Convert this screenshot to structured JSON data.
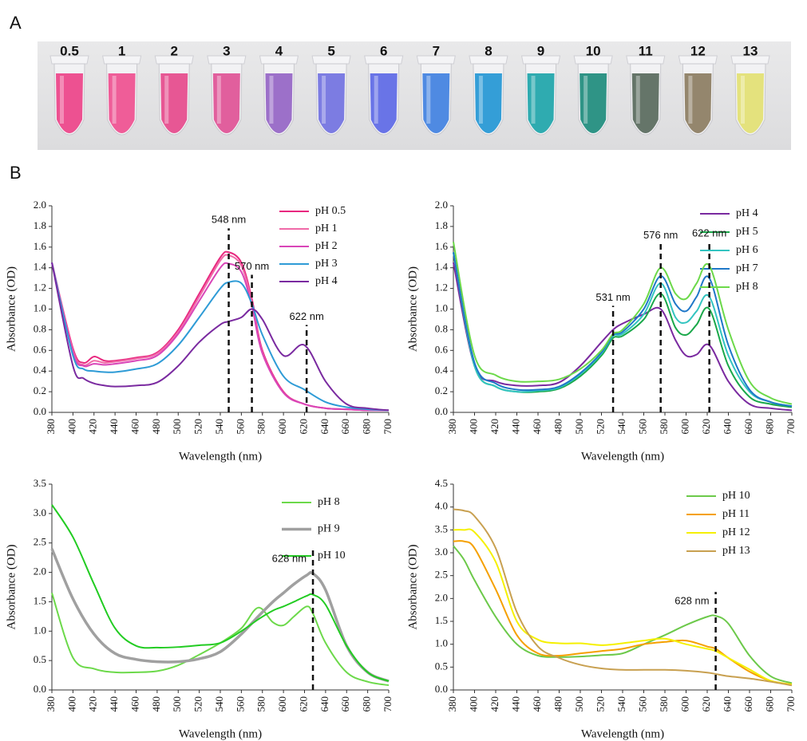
{
  "panel_labels": [
    "A",
    "B"
  ],
  "tubes": {
    "labels": [
      "0.5",
      "1",
      "2",
      "3",
      "4",
      "5",
      "6",
      "7",
      "8",
      "9",
      "10",
      "11",
      "12",
      "13"
    ],
    "colors": [
      "#ec3f86",
      "#ee4d8e",
      "#e6468a",
      "#df4f93",
      "#9262c4",
      "#6f6fe0",
      "#5a66e6",
      "#3d7ee0",
      "#1f95d4",
      "#1aa3a8",
      "#1a8a7a",
      "#55675a",
      "#8a7a5e",
      "#e2e070"
    ]
  },
  "chart_data": [
    {
      "type": "line",
      "x_label": "Wavelength (nm)",
      "y_label": "Absorbance (OD)",
      "xlim": [
        380,
        700
      ],
      "xticks": [
        380,
        400,
        420,
        440,
        460,
        480,
        500,
        520,
        540,
        560,
        580,
        600,
        620,
        640,
        660,
        680,
        700
      ],
      "ylim": [
        0,
        2
      ],
      "yticks": [
        {
          "value": 0,
          "label": "0.0"
        },
        0.2,
        0.4,
        0.6,
        0.8,
        {
          "value": 1,
          "label": "1.0"
        },
        1.2,
        1.4,
        1.6,
        1.8,
        {
          "value": 2,
          "label": "2.0"
        }
      ],
      "legend": "upper right",
      "x": [
        380,
        400,
        410,
        420,
        430,
        440,
        460,
        480,
        500,
        520,
        540,
        548,
        560,
        570,
        580,
        600,
        620,
        640,
        660,
        680,
        700
      ],
      "series": [
        {
          "name": "pH 0.5",
          "color": "#e8287f",
          "values": [
            1.45,
            0.62,
            0.48,
            0.54,
            0.5,
            0.5,
            0.53,
            0.58,
            0.8,
            1.15,
            1.5,
            1.55,
            1.45,
            1.1,
            0.6,
            0.2,
            0.08,
            0.04,
            0.03,
            0.02,
            0.02
          ]
        },
        {
          "name": "pH 1",
          "color": "#f06aa8",
          "values": [
            1.45,
            0.6,
            0.46,
            0.5,
            0.48,
            0.49,
            0.52,
            0.57,
            0.78,
            1.12,
            1.47,
            1.52,
            1.42,
            1.07,
            0.58,
            0.19,
            0.08,
            0.04,
            0.03,
            0.02,
            0.02
          ]
        },
        {
          "name": "pH 2",
          "color": "#d945b8",
          "values": [
            1.45,
            0.58,
            0.45,
            0.47,
            0.46,
            0.47,
            0.5,
            0.55,
            0.76,
            1.08,
            1.4,
            1.44,
            1.36,
            1.03,
            0.57,
            0.19,
            0.08,
            0.04,
            0.03,
            0.02,
            0.02
          ]
        },
        {
          "name": "pH 3",
          "color": "#2e9bd6",
          "values": [
            1.45,
            0.55,
            0.42,
            0.4,
            0.39,
            0.39,
            0.42,
            0.47,
            0.65,
            0.92,
            1.2,
            1.26,
            1.25,
            1.05,
            0.75,
            0.35,
            0.22,
            0.1,
            0.05,
            0.03,
            0.02
          ]
        },
        {
          "name": "pH 4",
          "color": "#7a2aa0",
          "values": [
            1.45,
            0.45,
            0.33,
            0.28,
            0.26,
            0.25,
            0.26,
            0.29,
            0.45,
            0.68,
            0.85,
            0.88,
            0.92,
            1.0,
            0.9,
            0.55,
            0.65,
            0.3,
            0.08,
            0.04,
            0.02
          ]
        }
      ],
      "annotations": [
        {
          "text": "548 nm",
          "x": 548
        },
        {
          "text": "570 nm",
          "x": 570
        },
        {
          "text": "622 nm",
          "x": 622
        }
      ]
    },
    {
      "type": "line",
      "x_label": "Wavelength (nm)",
      "y_label": "Absorbance (OD)",
      "xlim": [
        380,
        700
      ],
      "xticks": [
        380,
        400,
        420,
        440,
        460,
        480,
        500,
        520,
        540,
        560,
        580,
        600,
        620,
        640,
        660,
        680,
        700
      ],
      "ylim": [
        0,
        2
      ],
      "yticks": [
        {
          "value": 0,
          "label": "0.0"
        },
        0.2,
        0.4,
        0.6,
        0.8,
        {
          "value": 1,
          "label": "1.0"
        },
        1.2,
        1.4,
        1.6,
        1.8,
        {
          "value": 2,
          "label": "2.0"
        }
      ],
      "legend": "upper right",
      "x": [
        380,
        400,
        420,
        440,
        460,
        480,
        500,
        520,
        531,
        540,
        560,
        576,
        590,
        600,
        610,
        622,
        640,
        660,
        680,
        700
      ],
      "series": [
        {
          "name": "pH 4",
          "color": "#7a2aa0",
          "values": [
            1.45,
            0.45,
            0.3,
            0.26,
            0.26,
            0.29,
            0.45,
            0.68,
            0.8,
            0.86,
            0.95,
            1.0,
            0.7,
            0.55,
            0.56,
            0.65,
            0.3,
            0.08,
            0.04,
            0.02
          ]
        },
        {
          "name": "pH 5",
          "color": "#1aa84a",
          "values": [
            1.55,
            0.45,
            0.25,
            0.2,
            0.2,
            0.23,
            0.35,
            0.55,
            0.72,
            0.74,
            0.9,
            1.15,
            0.82,
            0.75,
            0.85,
            1.0,
            0.45,
            0.15,
            0.08,
            0.05
          ]
        },
        {
          "name": "pH 6",
          "color": "#33c4c0",
          "values": [
            1.55,
            0.45,
            0.25,
            0.2,
            0.21,
            0.24,
            0.37,
            0.57,
            0.74,
            0.76,
            0.95,
            1.25,
            0.92,
            0.87,
            0.98,
            1.12,
            0.55,
            0.2,
            0.1,
            0.06
          ]
        },
        {
          "name": "pH 7",
          "color": "#1f78c8",
          "values": [
            1.55,
            0.48,
            0.28,
            0.22,
            0.22,
            0.25,
            0.38,
            0.58,
            0.75,
            0.78,
            1.0,
            1.32,
            1.05,
            0.98,
            1.12,
            1.3,
            0.65,
            0.22,
            0.1,
            0.06
          ]
        },
        {
          "name": "pH 8",
          "color": "#6cd94a",
          "values": [
            1.65,
            0.55,
            0.36,
            0.3,
            0.3,
            0.32,
            0.42,
            0.6,
            0.76,
            0.8,
            1.05,
            1.4,
            1.15,
            1.1,
            1.25,
            1.42,
            0.8,
            0.3,
            0.14,
            0.08
          ]
        }
      ],
      "annotations": [
        {
          "text": "531 nm",
          "x": 531
        },
        {
          "text": "576 nm",
          "x": 576
        },
        {
          "text": "622 nm",
          "x": 622
        }
      ]
    },
    {
      "type": "line",
      "x_label": "Wavelength (nm)",
      "y_label": "Absorbance (OD)",
      "xlim": [
        380,
        700
      ],
      "xticks": [
        380,
        400,
        420,
        440,
        460,
        480,
        500,
        520,
        540,
        560,
        580,
        600,
        620,
        640,
        660,
        680,
        700
      ],
      "ylim": [
        0,
        3.5
      ],
      "yticks": [
        {
          "value": 0,
          "label": "0.0"
        },
        0.5,
        {
          "value": 1,
          "label": "1.0"
        },
        1.5,
        {
          "value": 2,
          "label": "2.0"
        },
        2.5,
        {
          "value": 3,
          "label": "3.0"
        },
        3.5
      ],
      "legend": "upper right",
      "x": [
        380,
        400,
        420,
        440,
        460,
        480,
        500,
        520,
        540,
        560,
        576,
        590,
        600,
        610,
        622,
        628,
        640,
        660,
        680,
        700
      ],
      "series": [
        {
          "name": "pH 8",
          "color": "#6cd94a",
          "values": [
            1.65,
            0.55,
            0.36,
            0.3,
            0.3,
            0.32,
            0.42,
            0.6,
            0.8,
            1.05,
            1.4,
            1.15,
            1.1,
            1.25,
            1.42,
            1.3,
            0.8,
            0.3,
            0.14,
            0.08
          ]
        },
        {
          "name": "pH 9",
          "color": "#a0a0a0",
          "values": [
            2.4,
            1.55,
            0.95,
            0.62,
            0.52,
            0.48,
            0.48,
            0.53,
            0.65,
            0.95,
            1.25,
            1.5,
            1.65,
            1.8,
            1.95,
            1.98,
            1.7,
            0.75,
            0.3,
            0.15
          ]
        },
        {
          "name": "pH 10",
          "color": "#22cc22",
          "values": [
            3.15,
            2.6,
            1.8,
            1.05,
            0.75,
            0.72,
            0.73,
            0.76,
            0.8,
            1.0,
            1.2,
            1.35,
            1.42,
            1.5,
            1.6,
            1.62,
            1.45,
            0.75,
            0.3,
            0.15
          ]
        }
      ],
      "annotations": [
        {
          "text": "628 nm",
          "x": 628
        }
      ]
    },
    {
      "type": "line",
      "x_label": "Wavelength (nm)",
      "y_label": "Absorbance (OD)",
      "xlim": [
        380,
        700
      ],
      "xticks": [
        380,
        400,
        420,
        440,
        460,
        480,
        500,
        520,
        540,
        560,
        580,
        600,
        620,
        640,
        660,
        680,
        700
      ],
      "ylim": [
        0,
        4.5
      ],
      "yticks": [
        {
          "value": 0,
          "label": "0.0"
        },
        0.5,
        {
          "value": 1,
          "label": "1.0"
        },
        1.5,
        {
          "value": 2,
          "label": "2.0"
        },
        2.5,
        {
          "value": 3,
          "label": "3.0"
        },
        3.5,
        {
          "value": 4,
          "label": "4.0"
        },
        4.5
      ],
      "legend": "upper right",
      "x": [
        380,
        390,
        400,
        420,
        440,
        460,
        480,
        500,
        520,
        540,
        560,
        580,
        600,
        620,
        628,
        640,
        660,
        680,
        700
      ],
      "series": [
        {
          "name": "pH 10",
          "color": "#6cc94a",
          "values": [
            3.15,
            2.85,
            2.4,
            1.6,
            1.0,
            0.75,
            0.72,
            0.73,
            0.76,
            0.8,
            1.0,
            1.2,
            1.42,
            1.6,
            1.62,
            1.45,
            0.75,
            0.3,
            0.15
          ]
        },
        {
          "name": "pH 11",
          "color": "#f5a000",
          "values": [
            3.25,
            3.25,
            3.1,
            2.2,
            1.2,
            0.8,
            0.75,
            0.8,
            0.85,
            0.9,
            1.0,
            1.05,
            1.08,
            0.95,
            0.9,
            0.7,
            0.4,
            0.2,
            0.12
          ]
        },
        {
          "name": "pH 12",
          "color": "#f5f000",
          "values": [
            3.5,
            3.5,
            3.45,
            2.8,
            1.5,
            1.1,
            1.02,
            1.02,
            0.98,
            1.02,
            1.08,
            1.12,
            1.0,
            0.9,
            0.85,
            0.7,
            0.45,
            0.2,
            0.12
          ]
        },
        {
          "name": "pH 13",
          "color": "#c8a050",
          "values": [
            3.95,
            3.92,
            3.8,
            3.1,
            1.7,
            0.95,
            0.7,
            0.55,
            0.47,
            0.44,
            0.44,
            0.44,
            0.42,
            0.38,
            0.35,
            0.3,
            0.25,
            0.18,
            0.1
          ]
        }
      ],
      "annotations": [
        {
          "text": "628 nm",
          "x": 628
        }
      ]
    }
  ]
}
